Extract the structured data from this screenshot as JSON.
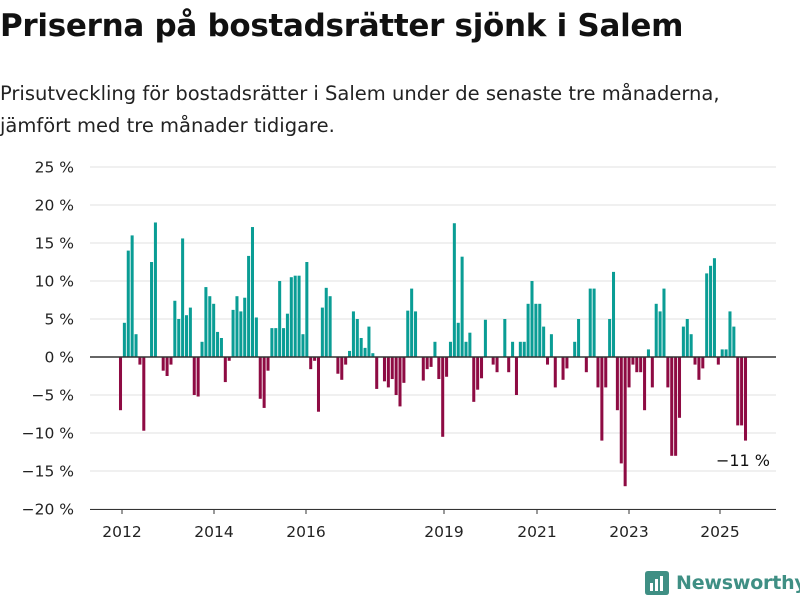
{
  "header": {
    "title": "Priserna på bostadsrätter sjönk i Salem",
    "subtitle_lines": [
      "Prisutveckling för bostadsrätter i Salem under de senaste tre månaderna,",
      "jämfört med tre månader tidigare."
    ]
  },
  "brand": {
    "name": "Newsworthy"
  },
  "chart_data": {
    "type": "bar",
    "x_ticks": [
      "2012",
      "2014",
      "2016",
      "2019",
      "2021",
      "2023",
      "2025"
    ],
    "y_ticks": [
      "25 %",
      "20 %",
      "15 %",
      "10 %",
      "5 %",
      "0 %",
      "−5 %",
      "−10 %",
      "−15 %",
      "−20 %"
    ],
    "ylim": [
      -20,
      25
    ],
    "colors": {
      "positive": "#0a9d95",
      "negative": "#8e0b43"
    },
    "annotation": {
      "text": "−11 %",
      "value": -11
    },
    "values": [
      -7,
      4.5,
      14,
      16,
      3,
      -1,
      -9.7,
      0,
      12.5,
      17.7,
      0,
      -1.8,
      -2.5,
      -1,
      7.4,
      5,
      15.6,
      5.5,
      6.5,
      -5,
      -5.2,
      2,
      9.2,
      8,
      7,
      3.3,
      2.5,
      -3.3,
      -0.5,
      6.2,
      8,
      6,
      7.8,
      13.3,
      17.1,
      5.2,
      -5.5,
      -6.7,
      -1.8,
      3.8,
      3.8,
      10,
      3.8,
      5.7,
      10.5,
      10.7,
      10.7,
      3,
      12.5,
      -1.6,
      -0.5,
      -7.2,
      6.5,
      9.1,
      8,
      0,
      -2.2,
      -3,
      -1,
      0.8,
      6,
      5,
      2.5,
      1.2,
      4,
      0.5,
      -4.2,
      0,
      -3.2,
      -4,
      -2.9,
      -5,
      -6.5,
      -3.4,
      6.1,
      9,
      6,
      0,
      -3.1,
      -1.6,
      -1.3,
      2,
      -2.9,
      -10.5,
      -2.6,
      2,
      17.6,
      4.5,
      13.2,
      2,
      3.2,
      -5.9,
      -4.3,
      -2.8,
      4.9,
      0,
      -1,
      -2,
      0,
      5,
      -2,
      2,
      -5,
      2,
      2,
      7,
      10,
      7,
      7,
      4,
      -1,
      3,
      -4,
      0,
      -3,
      -1.5,
      0,
      2,
      5,
      0,
      -2,
      9,
      9,
      -4,
      -11,
      -4,
      5,
      11.2,
      -7,
      -14,
      -17,
      -4,
      -1,
      -2,
      -2,
      -7,
      1,
      -4,
      7,
      6,
      9,
      -4,
      -13,
      -13,
      -8,
      4,
      5,
      3,
      -1,
      -3,
      -1.5,
      11,
      12,
      13,
      -1,
      1,
      1,
      6,
      4,
      -9,
      -9,
      -11
    ]
  }
}
